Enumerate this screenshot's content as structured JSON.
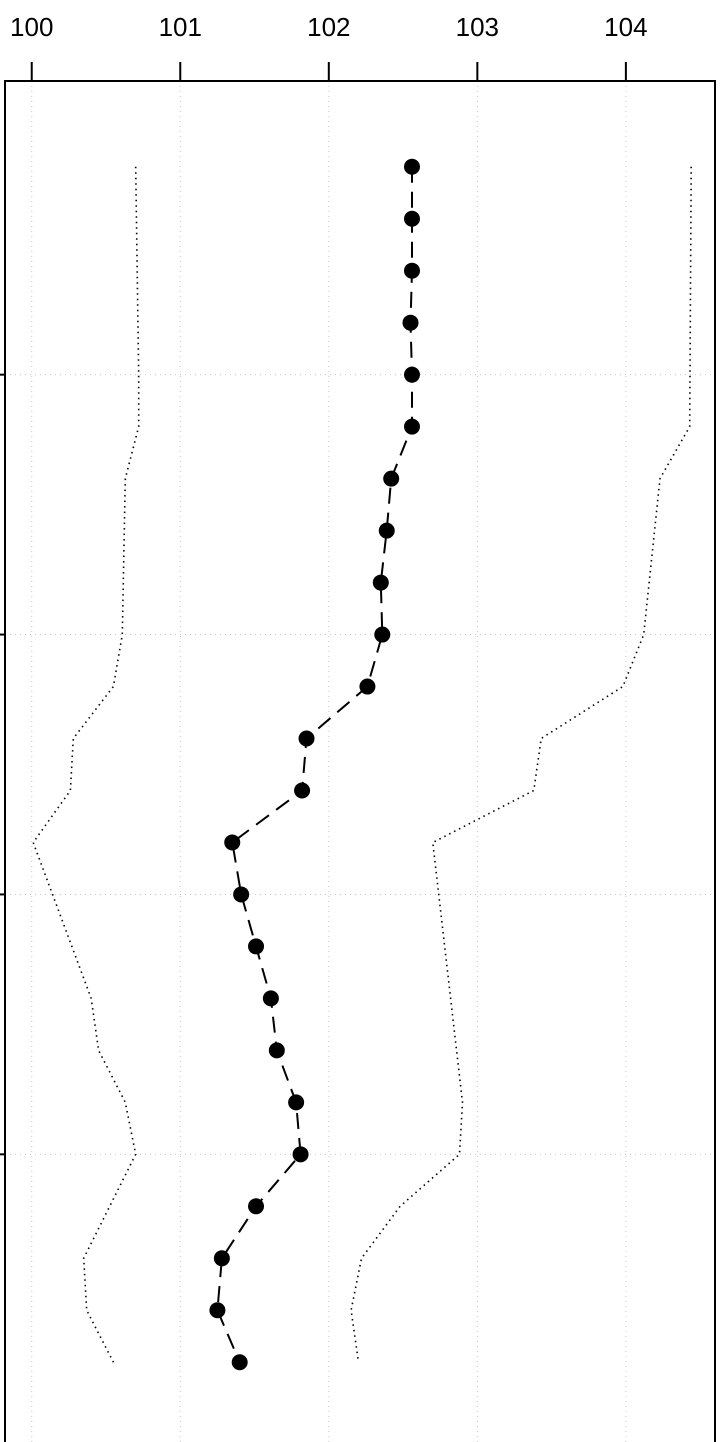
{
  "chart_data": {
    "type": "line",
    "title": "",
    "xlabel": "",
    "ylabel": "",
    "orientation": "vertical",
    "x_axis_position": "top",
    "xlim": [
      99.82,
      104.6
    ],
    "x_ticks": [
      100,
      101,
      102,
      103,
      104
    ],
    "x_tick_labels": [
      "100",
      "101",
      "102",
      "103",
      "104"
    ],
    "y_ticks": [
      5,
      10,
      15,
      20
    ],
    "y_tick_labels": [
      "",
      "",
      "",
      ""
    ],
    "ylim": [
      -0.65,
      25.9
    ],
    "grid": true,
    "series": [
      {
        "role": "estimate",
        "style": "dashed-with-points",
        "color": "#000000",
        "points": [
          {
            "y": 1,
            "x": 102.56
          },
          {
            "y": 2,
            "x": 102.56
          },
          {
            "y": 3,
            "x": 102.56
          },
          {
            "y": 4,
            "x": 102.55
          },
          {
            "y": 5,
            "x": 102.56
          },
          {
            "y": 6,
            "x": 102.56
          },
          {
            "y": 7,
            "x": 102.42
          },
          {
            "y": 8,
            "x": 102.39
          },
          {
            "y": 9,
            "x": 102.35
          },
          {
            "y": 10,
            "x": 102.36
          },
          {
            "y": 11,
            "x": 102.26
          },
          {
            "y": 12,
            "x": 101.85
          },
          {
            "y": 13,
            "x": 101.82
          },
          {
            "y": 14,
            "x": 101.35
          },
          {
            "y": 15,
            "x": 101.41
          },
          {
            "y": 16,
            "x": 101.51
          },
          {
            "y": 17,
            "x": 101.61
          },
          {
            "y": 18,
            "x": 101.65
          },
          {
            "y": 19,
            "x": 101.78
          },
          {
            "y": 20,
            "x": 101.81
          },
          {
            "y": 21,
            "x": 101.51
          },
          {
            "y": 22,
            "x": 101.28
          },
          {
            "y": 23,
            "x": 101.25
          },
          {
            "y": 24,
            "x": 101.4
          }
        ]
      },
      {
        "role": "lower-bound",
        "style": "dotted",
        "color": "#000000",
        "points": [
          {
            "y": 1,
            "x": 100.7
          },
          {
            "y": 5,
            "x": 100.72
          },
          {
            "y": 6,
            "x": 100.72
          },
          {
            "y": 7,
            "x": 100.63
          },
          {
            "y": 10,
            "x": 100.61
          },
          {
            "y": 11,
            "x": 100.55
          },
          {
            "y": 12,
            "x": 100.28
          },
          {
            "y": 13,
            "x": 100.26
          },
          {
            "y": 14,
            "x": 100.01
          },
          {
            "y": 17,
            "x": 100.4
          },
          {
            "y": 18,
            "x": 100.45
          },
          {
            "y": 19,
            "x": 100.63
          },
          {
            "y": 20,
            "x": 100.7
          },
          {
            "y": 22,
            "x": 100.35
          },
          {
            "y": 23,
            "x": 100.37
          },
          {
            "y": 24,
            "x": 100.55
          }
        ]
      },
      {
        "role": "upper-bound",
        "style": "dotted",
        "color": "#000000",
        "points": [
          {
            "y": 1,
            "x": 104.44
          },
          {
            "y": 6,
            "x": 104.43
          },
          {
            "y": 7,
            "x": 104.23
          },
          {
            "y": 10,
            "x": 104.12
          },
          {
            "y": 11,
            "x": 103.98
          },
          {
            "y": 12,
            "x": 103.43
          },
          {
            "y": 13,
            "x": 103.38
          },
          {
            "y": 14,
            "x": 102.7
          },
          {
            "y": 19,
            "x": 102.9
          },
          {
            "y": 20,
            "x": 102.88
          },
          {
            "y": 21,
            "x": 102.48
          },
          {
            "y": 22,
            "x": 102.22
          },
          {
            "y": 23,
            "x": 102.15
          },
          {
            "y": 24,
            "x": 102.2
          }
        ]
      }
    ]
  }
}
